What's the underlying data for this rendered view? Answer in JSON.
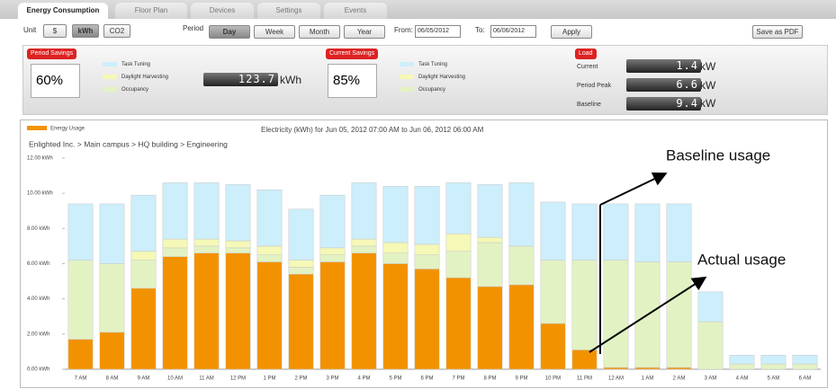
{
  "tabs": [
    "Energy Consumption",
    "Floor Plan",
    "Devices",
    "Settings",
    "Events"
  ],
  "toolbar": {
    "unit_label": "Unit",
    "units": [
      "$",
      "kWh",
      "CO2"
    ],
    "period_label": "Period",
    "periods": [
      "Day",
      "Week",
      "Month",
      "Year"
    ],
    "from_label": "From:",
    "from": "06/05/2012",
    "to_label": "To:",
    "to": "06/06/2012",
    "apply": "Apply",
    "save": "Save as PDF"
  },
  "period_savings": {
    "title": "Period Savings",
    "percent": "60%",
    "amount": "123.7",
    "unit": "kWh"
  },
  "current_savings": {
    "title": "Current Savings",
    "percent": "85%"
  },
  "load": {
    "title": "Load",
    "rows": [
      {
        "label": "Current",
        "value": "1.4",
        "unit": "kW"
      },
      {
        "label": "Period Peak",
        "value": "6.6",
        "unit": "kW"
      },
      {
        "label": "Baseline",
        "value": "9.4",
        "unit": "kW"
      }
    ]
  },
  "chart_data": {
    "type": "stacked_bar",
    "title": "Electricity (kWh) for Jun 05, 2012 07:00 AM to Jun 06, 2012 06:00 AM",
    "subtitle": "Enlighted Inc. > Main campus > HQ building > Engineering",
    "categories": [
      "7 AM",
      "8 AM",
      "9 AM",
      "10 AM",
      "11 AM",
      "12 PM",
      "1 PM",
      "2 PM",
      "3 PM",
      "4 PM",
      "5 PM",
      "6 PM",
      "7 PM",
      "8 PM",
      "9 PM",
      "10 PM",
      "11 PM",
      "12 AM",
      "1 AM",
      "2 AM",
      "3 AM",
      "4 AM",
      "5 AM",
      "6 AM"
    ],
    "series": [
      {
        "name": "Energy Usage",
        "color": "#f39200",
        "values": [
          1.7,
          2.1,
          4.6,
          6.4,
          6.6,
          6.6,
          6.1,
          5.4,
          6.1,
          6.6,
          6.0,
          5.7,
          5.2,
          4.7,
          4.8,
          2.6,
          1.1,
          0.1,
          0.1,
          0.1,
          0,
          0,
          0,
          0
        ]
      },
      {
        "name": "Occupancy",
        "color": "#e3f2c3",
        "values": [
          4.5,
          3.9,
          1.6,
          0.5,
          0.4,
          0.3,
          0.4,
          0.4,
          0.4,
          0.4,
          0.6,
          0.8,
          1.5,
          2.5,
          2.2,
          3.6,
          5.1,
          6.1,
          6.0,
          6.0,
          2.7,
          0.3,
          0.3,
          0.3
        ]
      },
      {
        "name": "Daylight Harvesting",
        "color": "#f5f8b6",
        "values": [
          0,
          0,
          0.5,
          0.5,
          0.4,
          0.4,
          0.5,
          0.4,
          0.4,
          0.4,
          0.6,
          0.6,
          1.0,
          0.3,
          0,
          0,
          0,
          0,
          0,
          0,
          0,
          0,
          0,
          0
        ]
      },
      {
        "name": "Task Tuning",
        "color": "#cdeefb",
        "values": [
          3.2,
          3.4,
          3.2,
          3.2,
          3.2,
          3.2,
          3.2,
          2.9,
          3.0,
          3.2,
          3.2,
          3.3,
          2.9,
          3.0,
          3.6,
          3.3,
          3.2,
          3.2,
          3.3,
          3.3,
          1.7,
          0.5,
          0.5,
          0.5
        ]
      }
    ],
    "ylim": [
      0,
      12
    ],
    "yticks": [
      {
        "value": 0,
        "label": "0.00 kWh"
      },
      {
        "value": 2,
        "label": "2.00 kWh"
      },
      {
        "value": 4,
        "label": "4.00 kWh"
      },
      {
        "value": 6,
        "label": "6.00 kWh"
      },
      {
        "value": 8,
        "label": "8.00 kWh"
      },
      {
        "value": 10,
        "label": "10.00 kWh"
      },
      {
        "value": 12,
        "label": "12.00 kWh"
      }
    ],
    "annotations": [
      "Baseline usage",
      "Actual usage"
    ]
  }
}
